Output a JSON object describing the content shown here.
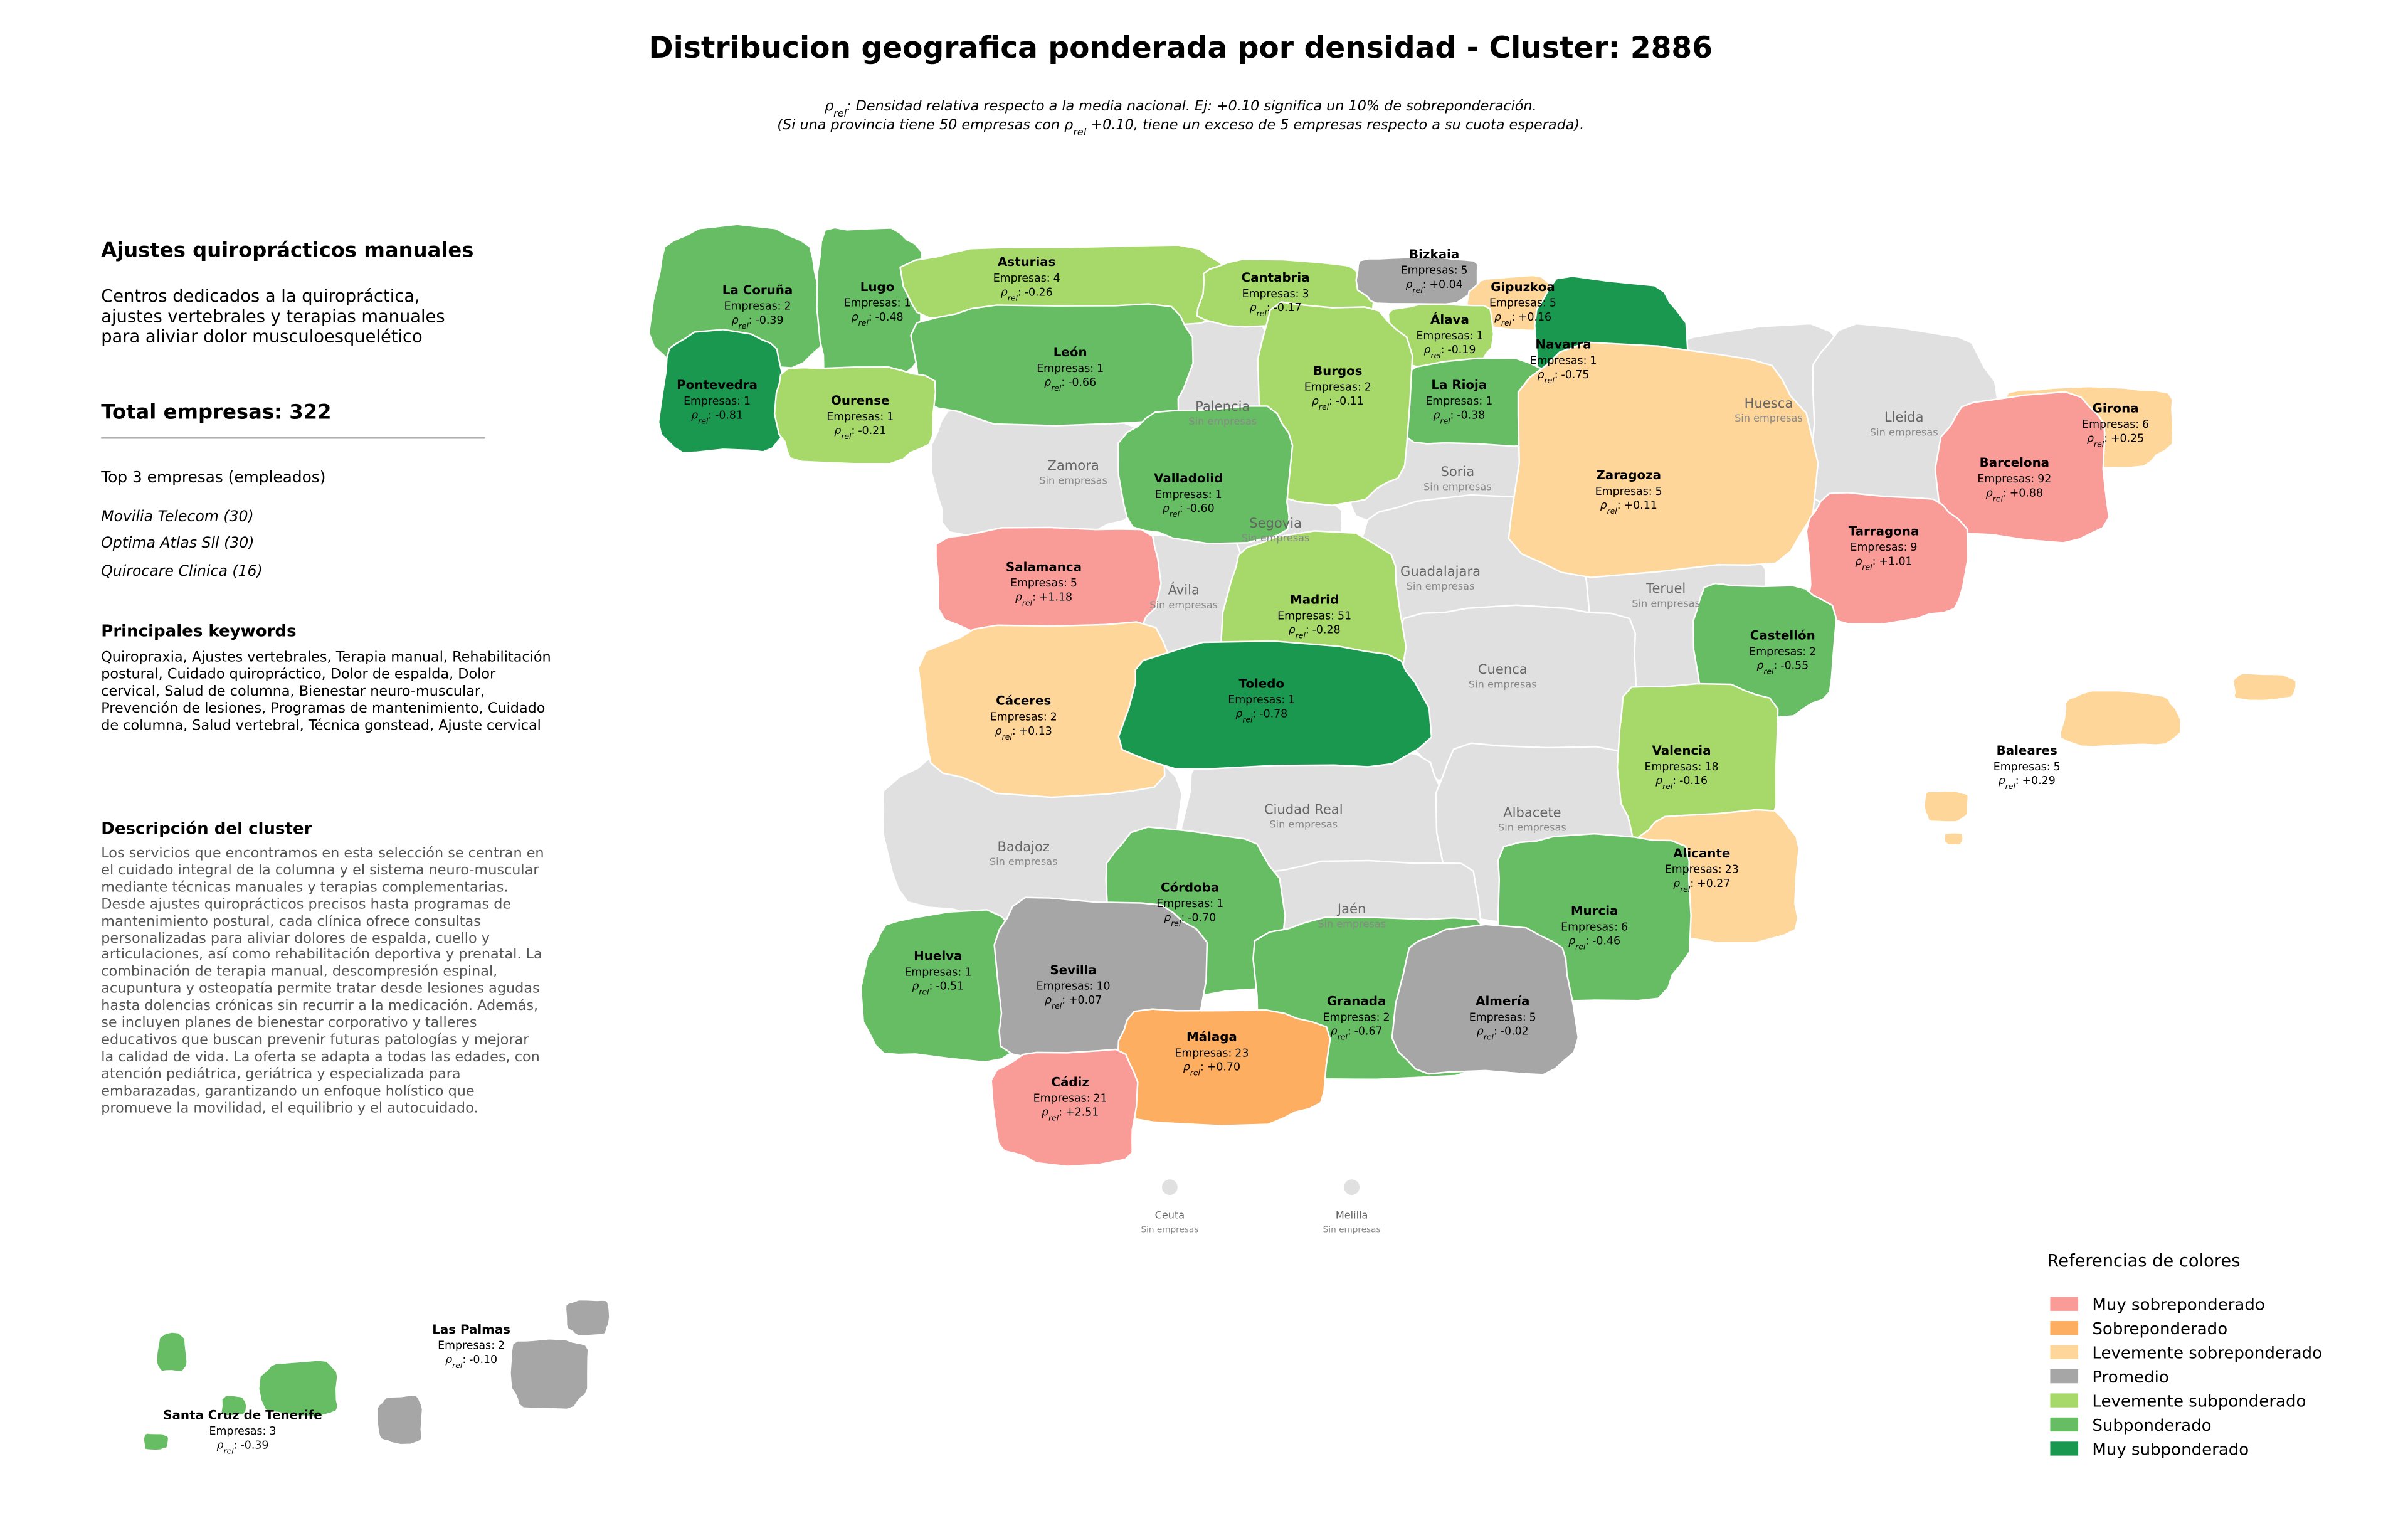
{
  "title": "Distribucion geografica ponderada por densidad - Cluster: 2886",
  "subtitle": {
    "rho_symbol": "ρ",
    "rho_subscript": "rel",
    "line1_text": ": Densidad relativa respecto a la media nacional. Ej: +0.10 significa un 10% de sobreponderación.",
    "line2_start": "(Si una provincia tiene 50 empresas con ",
    "line2_end": " +0.10, tiene un exceso de 5 empresas respecto a su cuota esperada)."
  },
  "sidebar": {
    "cluster_name": "Ajustes quiroprácticos manuales",
    "cluster_summary": "Centros dedicados a la quiropráctica, ajustes vertebrales y terapias manuales para aliviar dolor musculoesquelético",
    "total_label": "Total empresas:",
    "total": 322,
    "top_heading": "Top 3 empresas (empleados)",
    "top_companies": [
      "Movilia Telecom (30)",
      "Optima Atlas Sll (30)",
      "Quirocare Clinica (16)"
    ],
    "keywords_heading": "Principales keywords",
    "keywords": "Quiropraxia, Ajustes vertebrales, Terapia manual, Rehabilitación postural, Cuidado quiropráctico, Dolor de espalda, Dolor cervical, Salud de columna, Bienestar neuro-muscular, Prevención de lesiones, Programas de mantenimiento, Cuidado de columna, Salud vertebral, Técnica gonstead, Ajuste cervical",
    "description_heading": "Descripción del cluster",
    "description": "Los servicios que encontramos en esta selección se centran en el cuidado integral de la columna y el sistema neuro-muscular mediante técnicas manuales y terapias complementarias. Desde ajustes quiroprácticos precisos hasta programas de mantenimiento postural, cada clínica ofrece consultas personalizadas para aliviar dolores de espalda, cuello y articulaciones, así como rehabilitación deportiva y prenatal. La combinación de terapia manual, descompresión espinal, acupuntura y osteopatía permite tratar desde lesiones agudas hasta dolencias crónicas sin recurrir a la medicación. Además, se incluyen planes de bienestar corporativo y talleres educativos que buscan prevenir futuras patologías y mejorar la calidad de vida. La oferta se adapta a todas las edades, con atención pediátrica, geriátrica y especializada para embarazadas, garantizando un enfoque holístico que promueve la movilidad, el equilibrio y el autocuidado."
  },
  "map": {
    "companies_label": "Empresas:",
    "rho_separator": ":",
    "no_companies_label": "Sin empresas",
    "no_data_color": "#e0e0e0",
    "provinces": [
      {
        "name": "La Coruña",
        "companies": 2,
        "rel_density": "-0.39",
        "category": 5
      },
      {
        "name": "Lugo",
        "companies": 1,
        "rel_density": "-0.48",
        "category": 5
      },
      {
        "name": "Asturias",
        "companies": 4,
        "rel_density": "-0.26",
        "category": 4
      },
      {
        "name": "Cantabria",
        "companies": 3,
        "rel_density": "-0.17",
        "category": 4
      },
      {
        "name": "Bizkaia",
        "companies": 5,
        "rel_density": "+0.04",
        "category": 3
      },
      {
        "name": "Gipuzkoa",
        "companies": 5,
        "rel_density": "+0.16",
        "category": 2
      },
      {
        "name": "Navarra",
        "companies": 1,
        "rel_density": "-0.75",
        "category": 6
      },
      {
        "name": "Álava",
        "companies": 1,
        "rel_density": "-0.19",
        "category": 4
      },
      {
        "name": "La Rioja",
        "companies": 1,
        "rel_density": "-0.38",
        "category": 5
      },
      {
        "name": "Burgos",
        "companies": 2,
        "rel_density": "-0.11",
        "category": 4
      },
      {
        "name": "León",
        "companies": 1,
        "rel_density": "-0.66",
        "category": 5
      },
      {
        "name": "Pontevedra",
        "companies": 1,
        "rel_density": "-0.81",
        "category": 6
      },
      {
        "name": "Ourense",
        "companies": 1,
        "rel_density": "-0.21",
        "category": 4
      },
      {
        "name": "Valladolid",
        "companies": 1,
        "rel_density": "-0.60",
        "category": 5
      },
      {
        "name": "Zaragoza",
        "companies": 5,
        "rel_density": "+0.11",
        "category": 2
      },
      {
        "name": "Girona",
        "companies": 6,
        "rel_density": "+0.25",
        "category": 2
      },
      {
        "name": "Barcelona",
        "companies": 92,
        "rel_density": "+0.88",
        "category": 0
      },
      {
        "name": "Tarragona",
        "companies": 9,
        "rel_density": "+1.01",
        "category": 0
      },
      {
        "name": "Salamanca",
        "companies": 5,
        "rel_density": "+1.18",
        "category": 0
      },
      {
        "name": "Madrid",
        "companies": 51,
        "rel_density": "-0.28",
        "category": 4
      },
      {
        "name": "Castellón",
        "companies": 2,
        "rel_density": "-0.55",
        "category": 5
      },
      {
        "name": "Cáceres",
        "companies": 2,
        "rel_density": "+0.13",
        "category": 2
      },
      {
        "name": "Toledo",
        "companies": 1,
        "rel_density": "-0.78",
        "category": 6
      },
      {
        "name": "Valencia",
        "companies": 18,
        "rel_density": "-0.16",
        "category": 4
      },
      {
        "name": "Alicante",
        "companies": 23,
        "rel_density": "+0.27",
        "category": 2
      },
      {
        "name": "Córdoba",
        "companies": 1,
        "rel_density": "-0.70",
        "category": 5
      },
      {
        "name": "Murcia",
        "companies": 6,
        "rel_density": "-0.46",
        "category": 5
      },
      {
        "name": "Huelva",
        "companies": 1,
        "rel_density": "-0.51",
        "category": 5
      },
      {
        "name": "Sevilla",
        "companies": 10,
        "rel_density": "+0.07",
        "category": 3
      },
      {
        "name": "Granada",
        "companies": 2,
        "rel_density": "-0.67",
        "category": 5
      },
      {
        "name": "Almería",
        "companies": 5,
        "rel_density": "-0.02",
        "category": 3
      },
      {
        "name": "Málaga",
        "companies": 23,
        "rel_density": "+0.70",
        "category": 1
      },
      {
        "name": "Cádiz",
        "companies": 21,
        "rel_density": "+2.51",
        "category": 0
      },
      {
        "name": "Baleares",
        "companies": 5,
        "rel_density": "+0.29",
        "category": 2
      },
      {
        "name": "Las Palmas",
        "companies": 2,
        "rel_density": "-0.10",
        "category": 3
      },
      {
        "name": "Santa Cruz de Tenerife",
        "companies": 3,
        "rel_density": "-0.39",
        "category": 5
      }
    ],
    "empty_provinces": [
      {
        "name": "Palencia"
      },
      {
        "name": "Zamora"
      },
      {
        "name": "Soria"
      },
      {
        "name": "Huesca"
      },
      {
        "name": "Lleida"
      },
      {
        "name": "Segovia"
      },
      {
        "name": "Ávila"
      },
      {
        "name": "Guadalajara"
      },
      {
        "name": "Teruel"
      },
      {
        "name": "Cuenca"
      },
      {
        "name": "Badajoz"
      },
      {
        "name": "Ciudad Real"
      },
      {
        "name": "Albacete"
      },
      {
        "name": "Jaén"
      },
      {
        "name": "Ceuta"
      },
      {
        "name": "Melilla"
      }
    ]
  },
  "legend": {
    "title": "Referencias de colores",
    "categories": [
      {
        "name": "Muy sobreponderado",
        "color": "#f99b97"
      },
      {
        "name": "Sobreponderado",
        "color": "#fdae61"
      },
      {
        "name": "Levemente sobreponderado",
        "color": "#fed69a"
      },
      {
        "name": "Promedio",
        "color": "#a6a6a6"
      },
      {
        "name": "Levemente subponderado",
        "color": "#a6d96a"
      },
      {
        "name": "Subponderado",
        "color": "#66bd63"
      },
      {
        "name": "Muy subponderado",
        "color": "#1a9850"
      }
    ]
  }
}
